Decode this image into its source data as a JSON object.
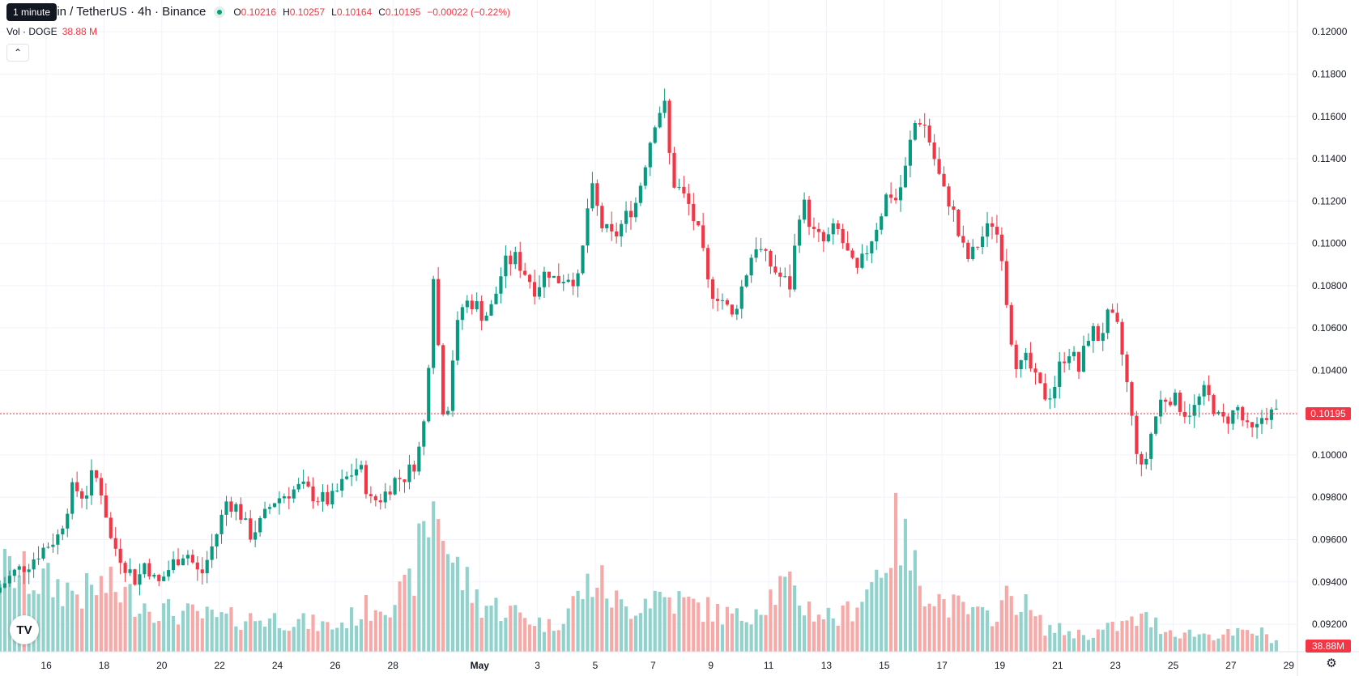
{
  "header": {
    "tooltip": "1 minute",
    "title": "oin / TetherUS · 4h · Binance",
    "open_label": "O",
    "open": "0.10216",
    "high_label": "H",
    "high": "0.10257",
    "low_label": "L",
    "low": "0.10164",
    "close_label": "C",
    "close": "0.10195",
    "change": "−0.00022 (−0.22%)"
  },
  "volume": {
    "label": "Vol · DOGE",
    "value": "38.88 M"
  },
  "colors": {
    "up": "#089981",
    "down": "#f23645",
    "up_vol": "#92d2cc",
    "down_vol": "#f7a9a7",
    "grid": "#f0f3fa",
    "text": "#131722"
  },
  "icons": {
    "collapse": "chevron-up-icon",
    "logo": "tradingview-logo-icon",
    "settings": "gear-icon"
  },
  "logo_text": "TV",
  "chart_data": {
    "type": "candlestick",
    "ylim": [
      0.0907,
      0.1215
    ],
    "y_ticks": [
      "0.12000",
      "0.11800",
      "0.11600",
      "0.11400",
      "0.11200",
      "0.11000",
      "0.10800",
      "0.10600",
      "0.10400",
      "0.10200",
      "0.10000",
      "0.09800",
      "0.09600",
      "0.09400",
      "0.09200"
    ],
    "y_tick_values": [
      0.12,
      0.118,
      0.116,
      0.114,
      0.112,
      0.11,
      0.108,
      0.106,
      0.104,
      0.102,
      0.1,
      0.098,
      0.096,
      0.094,
      0.092
    ],
    "x_ticks": [
      "16",
      "18",
      "20",
      "22",
      "24",
      "26",
      "28",
      "May",
      "3",
      "5",
      "7",
      "9",
      "11",
      "13",
      "15",
      "17",
      "19",
      "21",
      "23",
      "25",
      "27",
      "29"
    ],
    "x_range_days": [
      14.4,
      59.3
    ],
    "x_tick_days": [
      16,
      18,
      20,
      22,
      24,
      26,
      28,
      31,
      33,
      35,
      37,
      39,
      41,
      43,
      45,
      47,
      49,
      51,
      53,
      55,
      57,
      59
    ],
    "last_price": "0.10195",
    "last_price_value": 0.10195,
    "last_volume": "38.88M",
    "grid": true,
    "price_anchors": [
      [
        14.4,
        0.0935
      ],
      [
        15.1,
        0.0945
      ],
      [
        15.5,
        0.0948
      ],
      [
        16.0,
        0.0955
      ],
      [
        16.6,
        0.0962
      ],
      [
        17.1,
        0.0985
      ],
      [
        17.5,
        0.098
      ],
      [
        17.8,
        0.0992
      ],
      [
        18.1,
        0.0982
      ],
      [
        18.4,
        0.096
      ],
      [
        18.9,
        0.0948
      ],
      [
        19.3,
        0.094
      ],
      [
        19.6,
        0.095
      ],
      [
        20.0,
        0.0938
      ],
      [
        20.5,
        0.0948
      ],
      [
        21.0,
        0.0955
      ],
      [
        21.5,
        0.0942
      ],
      [
        22.0,
        0.096
      ],
      [
        22.4,
        0.0978
      ],
      [
        22.8,
        0.0975
      ],
      [
        23.2,
        0.0962
      ],
      [
        23.6,
        0.0968
      ],
      [
        24.0,
        0.0978
      ],
      [
        24.5,
        0.0982
      ],
      [
        25.0,
        0.0985
      ],
      [
        25.5,
        0.098
      ],
      [
        26.0,
        0.0978
      ],
      [
        26.5,
        0.0988
      ],
      [
        27.0,
        0.0995
      ],
      [
        27.4,
        0.0978
      ],
      [
        27.8,
        0.098
      ],
      [
        28.2,
        0.0988
      ],
      [
        28.6,
        0.099
      ],
      [
        29.0,
        0.0998
      ],
      [
        29.3,
        0.102
      ],
      [
        29.6,
        0.1095
      ],
      [
        29.8,
        0.103
      ],
      [
        30.0,
        0.1015
      ],
      [
        30.3,
        0.1055
      ],
      [
        30.6,
        0.1072
      ],
      [
        31.0,
        0.1072
      ],
      [
        31.3,
        0.1065
      ],
      [
        31.6,
        0.107
      ],
      [
        32.0,
        0.109
      ],
      [
        32.4,
        0.1093
      ],
      [
        32.8,
        0.1085
      ],
      [
        33.1,
        0.1078
      ],
      [
        33.5,
        0.1088
      ],
      [
        33.8,
        0.1082
      ],
      [
        34.2,
        0.1085
      ],
      [
        34.6,
        0.1082
      ],
      [
        35.0,
        0.1128
      ],
      [
        35.4,
        0.1108
      ],
      [
        35.8,
        0.1102
      ],
      [
        36.2,
        0.1112
      ],
      [
        36.6,
        0.112
      ],
      [
        37.0,
        0.1145
      ],
      [
        37.3,
        0.1162
      ],
      [
        37.6,
        0.1165
      ],
      [
        37.8,
        0.113
      ],
      [
        38.1,
        0.1125
      ],
      [
        38.4,
        0.1118
      ],
      [
        38.8,
        0.1102
      ],
      [
        39.1,
        0.1078
      ],
      [
        39.5,
        0.1075
      ],
      [
        39.9,
        0.1065
      ],
      [
        40.3,
        0.1082
      ],
      [
        40.7,
        0.11
      ],
      [
        41.1,
        0.1092
      ],
      [
        41.5,
        0.1085
      ],
      [
        41.9,
        0.108
      ],
      [
        42.3,
        0.1122
      ],
      [
        42.7,
        0.1105
      ],
      [
        43.1,
        0.11
      ],
      [
        43.5,
        0.1108
      ],
      [
        43.8,
        0.1098
      ],
      [
        44.2,
        0.1085
      ],
      [
        44.6,
        0.1098
      ],
      [
        45.0,
        0.1112
      ],
      [
        45.3,
        0.1125
      ],
      [
        45.6,
        0.112
      ],
      [
        45.9,
        0.1135
      ],
      [
        46.1,
        0.115
      ],
      [
        46.3,
        0.116
      ],
      [
        46.6,
        0.1155
      ],
      [
        46.9,
        0.114
      ],
      [
        47.2,
        0.1125
      ],
      [
        47.5,
        0.1118
      ],
      [
        47.8,
        0.11
      ],
      [
        48.1,
        0.1092
      ],
      [
        48.5,
        0.1102
      ],
      [
        48.9,
        0.111
      ],
      [
        49.2,
        0.11
      ],
      [
        49.5,
        0.106
      ],
      [
        49.8,
        0.104
      ],
      [
        50.1,
        0.1045
      ],
      [
        50.4,
        0.1035
      ],
      [
        50.7,
        0.1028
      ],
      [
        51.0,
        0.103
      ],
      [
        51.3,
        0.1045
      ],
      [
        51.6,
        0.105
      ],
      [
        51.9,
        0.104
      ],
      [
        52.3,
        0.106
      ],
      [
        52.6,
        0.1055
      ],
      [
        52.9,
        0.1065
      ],
      [
        53.2,
        0.1062
      ],
      [
        53.5,
        0.104
      ],
      [
        53.8,
        0.101
      ],
      [
        54.1,
        0.099
      ],
      [
        54.4,
        0.101
      ],
      [
        54.7,
        0.1025
      ],
      [
        55.0,
        0.1028
      ],
      [
        55.3,
        0.1025
      ],
      [
        55.6,
        0.102
      ],
      [
        55.9,
        0.1022
      ],
      [
        56.2,
        0.103
      ],
      [
        56.5,
        0.1025
      ],
      [
        56.8,
        0.1015
      ],
      [
        57.1,
        0.1018
      ],
      [
        57.4,
        0.1022
      ],
      [
        57.7,
        0.1012
      ],
      [
        58.0,
        0.101
      ],
      [
        58.3,
        0.102
      ],
      [
        58.6,
        0.10195
      ]
    ],
    "volume_anchors": [
      [
        14.4,
        0.5
      ],
      [
        17.3,
        0.35
      ],
      [
        18.0,
        0.4
      ],
      [
        20.0,
        0.25
      ],
      [
        22.0,
        0.2
      ],
      [
        24.0,
        0.2
      ],
      [
        26.0,
        0.15
      ],
      [
        27.5,
        0.3
      ],
      [
        28.5,
        0.35
      ],
      [
        29.5,
        0.95
      ],
      [
        30.0,
        0.55
      ],
      [
        31.0,
        0.3
      ],
      [
        32.0,
        0.25
      ],
      [
        33.5,
        0.15
      ],
      [
        35.0,
        0.45
      ],
      [
        36.0,
        0.25
      ],
      [
        37.0,
        0.35
      ],
      [
        38.0,
        0.3
      ],
      [
        39.0,
        0.25
      ],
      [
        40.0,
        0.2
      ],
      [
        41.5,
        0.4
      ],
      [
        42.5,
        0.25
      ],
      [
        43.5,
        0.2
      ],
      [
        44.5,
        0.4
      ],
      [
        45.5,
        0.75
      ],
      [
        46.0,
        0.5
      ],
      [
        47.0,
        0.3
      ],
      [
        48.5,
        0.2
      ],
      [
        49.5,
        0.35
      ],
      [
        50.5,
        0.15
      ],
      [
        52.0,
        0.1
      ],
      [
        53.0,
        0.15
      ],
      [
        54.0,
        0.2
      ],
      [
        55.0,
        0.12
      ],
      [
        56.5,
        0.1
      ],
      [
        58.0,
        0.12
      ],
      [
        58.6,
        0.06
      ]
    ],
    "volume_max": 1.0,
    "candles_per_day": 6
  }
}
